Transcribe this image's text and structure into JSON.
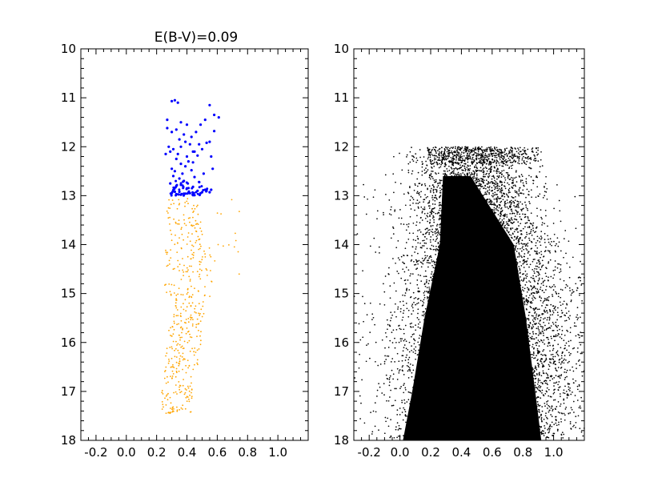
{
  "chart_data": [
    {
      "type": "scatter",
      "title": "E(B-V)=0.09",
      "xlim": [
        -0.3,
        1.2
      ],
      "ylim": [
        18,
        10
      ],
      "y_inverted": true,
      "xticks": [
        "-0.2",
        "0.0",
        "0.2",
        "0.4",
        "0.6",
        "0.8",
        "1.0"
      ],
      "xtick_values": [
        -0.2,
        0.0,
        0.2,
        0.4,
        0.6,
        0.8,
        1.0
      ],
      "yticks": [
        "10",
        "11",
        "12",
        "13",
        "14",
        "15",
        "16",
        "17",
        "18"
      ],
      "ytick_values": [
        10,
        11,
        12,
        13,
        14,
        15,
        16,
        17,
        18
      ],
      "grid": false,
      "series": [
        {
          "color": "#0000ff",
          "marker": "dot",
          "approx_points": 120,
          "x": [
            0.3,
            0.32,
            0.34,
            0.55,
            0.58,
            0.61,
            0.27,
            0.36,
            0.4,
            0.52,
            0.49,
            0.27,
            0.3,
            0.33,
            0.38,
            0.43,
            0.46,
            0.58,
            0.35,
            0.39,
            0.42,
            0.55,
            0.28,
            0.31,
            0.36,
            0.45,
            0.5,
            0.48,
            0.53,
            0.34,
            0.4,
            0.44,
            0.47,
            0.26,
            0.29,
            0.33,
            0.41,
            0.56,
            0.36,
            0.39,
            0.44,
            0.3,
            0.32,
            0.37,
            0.43,
            0.51,
            0.57,
            0.31,
            0.35,
            0.38,
            0.45,
            0.48,
            0.29,
            0.33,
            0.36,
            0.4,
            0.44,
            0.52,
            0.31,
            0.35,
            0.42,
            0.47,
            0.55,
            0.3,
            0.33,
            0.36,
            0.39,
            0.41,
            0.45,
            0.49,
            0.53,
            0.56,
            0.32,
            0.38,
            0.44,
            0.5
          ],
          "y": [
            11.07,
            11.05,
            11.1,
            11.15,
            11.35,
            11.4,
            11.45,
            11.5,
            11.55,
            11.45,
            11.55,
            11.62,
            11.7,
            11.65,
            11.75,
            11.8,
            11.7,
            11.68,
            11.85,
            11.9,
            11.95,
            11.9,
            12.0,
            12.05,
            12.0,
            12.1,
            12.05,
            11.95,
            11.92,
            12.15,
            12.2,
            12.1,
            12.18,
            12.15,
            12.1,
            12.25,
            12.3,
            12.2,
            12.35,
            12.4,
            12.32,
            12.45,
            12.5,
            12.55,
            12.48,
            12.55,
            12.45,
            12.6,
            12.65,
            12.7,
            12.62,
            12.72,
            12.75,
            12.8,
            12.78,
            12.85,
            12.82,
            12.88,
            12.9,
            12.92,
            12.95,
            12.9,
            12.93,
            12.95,
            12.97,
            12.98,
            12.96,
            12.94,
            12.99,
            12.95,
            12.9,
            12.88,
            12.92,
            12.96,
            12.99,
            12.93
          ]
        },
        {
          "color": "#ffa500",
          "marker": "dot",
          "x_range": [
            0.05,
            0.75
          ],
          "y_range": [
            13.0,
            17.5
          ],
          "approx_points": 450,
          "description_values": "sparse main-sequence band centered near x≈0.35, widening toward y≈14.5"
        }
      ]
    },
    {
      "type": "scatter",
      "title": "",
      "xlim": [
        -0.3,
        1.2
      ],
      "ylim": [
        18,
        10
      ],
      "y_inverted": true,
      "xticks": [
        "-0.2",
        "0.0",
        "0.2",
        "0.4",
        "0.6",
        "0.8",
        "1.0"
      ],
      "xtick_values": [
        -0.2,
        0.0,
        0.2,
        0.4,
        0.6,
        0.8,
        1.0
      ],
      "yticks": [
        "10",
        "11",
        "12",
        "13",
        "14",
        "15",
        "16",
        "17",
        "18"
      ],
      "ytick_values": [
        10,
        11,
        12,
        13,
        14,
        15,
        16,
        17,
        18
      ],
      "grid": false,
      "series": [
        {
          "color": "#000000",
          "marker": "dot",
          "y_range": [
            12.0,
            18.0
          ],
          "x_range": [
            -0.3,
            1.2
          ],
          "approx_points": 9000,
          "core_region_left_edge": [
            [
              12.6,
              0.28
            ],
            [
              14.0,
              0.26
            ],
            [
              15.5,
              0.16
            ],
            [
              17.0,
              0.08
            ],
            [
              18.0,
              0.02
            ]
          ],
          "core_region_right_edge": [
            [
              12.6,
              0.46
            ],
            [
              14.0,
              0.74
            ],
            [
              15.5,
              0.82
            ],
            [
              17.0,
              0.88
            ],
            [
              18.0,
              0.92
            ]
          ]
        }
      ]
    }
  ]
}
